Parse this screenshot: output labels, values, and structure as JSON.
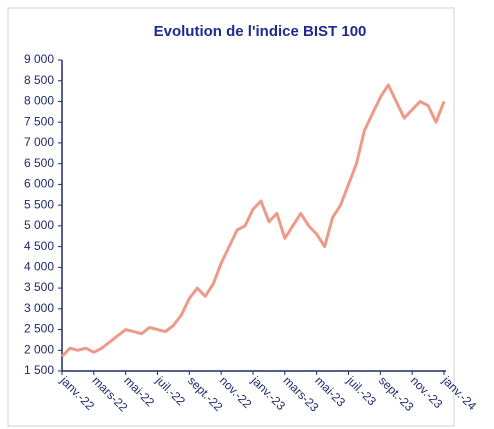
{
  "chart_data": {
    "type": "line",
    "title": "Evolution de l'indice  BIST 100",
    "categories": [
      "janv.-22",
      null,
      null,
      null,
      "mars-22",
      null,
      null,
      null,
      "mai-22",
      null,
      null,
      null,
      "juil.-22",
      null,
      null,
      null,
      "sept.-22",
      null,
      null,
      null,
      "nov.-22",
      null,
      null,
      null,
      "janv.-23",
      null,
      null,
      null,
      "mars-23",
      null,
      null,
      null,
      "mai-23",
      null,
      null,
      null,
      "juil.-23",
      null,
      null,
      null,
      "sept.-23",
      null,
      null,
      null,
      "nov.-23",
      null,
      null,
      null,
      "janv.-24"
    ],
    "series": [
      {
        "name": "BIST 100",
        "color": "#ee9a88",
        "values": [
          1850,
          2050,
          2000,
          2050,
          1950,
          2050,
          2200,
          2350,
          2500,
          2450,
          2400,
          2550,
          2500,
          2450,
          2600,
          2850,
          3250,
          3500,
          3300,
          3600,
          4100,
          4500,
          4900,
          5000,
          5400,
          5600,
          5100,
          5300,
          4700,
          5000,
          5300,
          5000,
          4800,
          4500,
          5200,
          5500,
          6000,
          6500,
          7300,
          7700,
          8100,
          8400,
          8000,
          7600,
          7800,
          8000,
          7900,
          7500,
          8000
        ]
      }
    ],
    "ylim": [
      1500,
      9000
    ],
    "yticks": [
      {
        "value": 1500,
        "label": "1 500"
      },
      {
        "value": 2000,
        "label": "2 000"
      },
      {
        "value": 2500,
        "label": "2 500"
      },
      {
        "value": 3000,
        "label": "3 000"
      },
      {
        "value": 3500,
        "label": "3 500"
      },
      {
        "value": 4000,
        "label": "4 000"
      },
      {
        "value": 4500,
        "label": "4 500"
      },
      {
        "value": 5000,
        "label": "5 000"
      },
      {
        "value": 5500,
        "label": "5 500"
      },
      {
        "value": 6000,
        "label": "6 000"
      },
      {
        "value": 6500,
        "label": "6 500"
      },
      {
        "value": 7000,
        "label": "7 000"
      },
      {
        "value": 7500,
        "label": "7 500"
      },
      {
        "value": 8000,
        "label": "8 000"
      },
      {
        "value": 8500,
        "label": "8 500"
      },
      {
        "value": 9000,
        "label": "9 000"
      }
    ],
    "grid": false
  }
}
